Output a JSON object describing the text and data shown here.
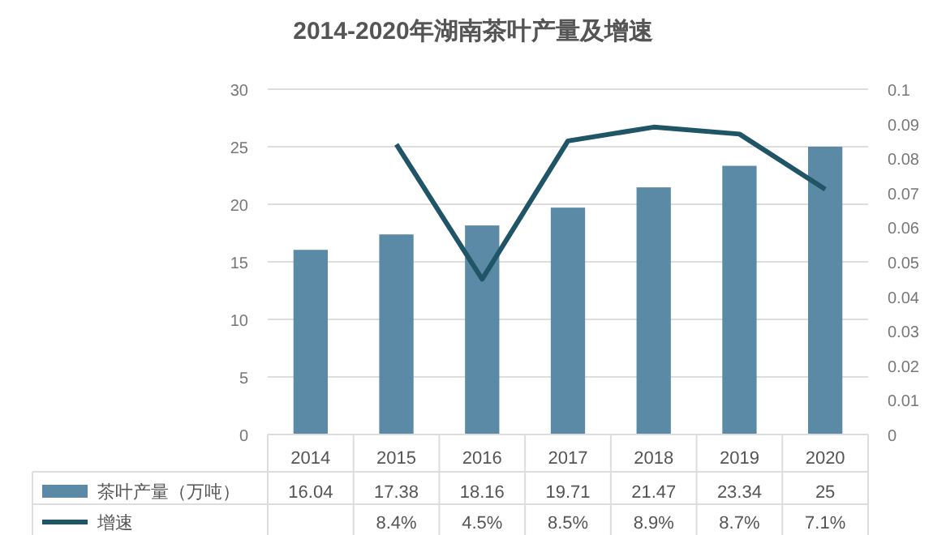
{
  "chart_data": {
    "type": "bar",
    "title": "2014-2020年湖南茶叶产量及增速",
    "categories": [
      "2014",
      "2015",
      "2016",
      "2017",
      "2018",
      "2019",
      "2020"
    ],
    "series": [
      {
        "name": "茶叶产量（万吨）",
        "color": "#5b8aa6",
        "values": [
          16.04,
          17.38,
          18.16,
          19.71,
          21.47,
          23.34,
          25
        ]
      },
      {
        "name": "增速",
        "type": "line",
        "axis": "y2",
        "color": "#1f5566",
        "values": [
          null,
          0.084,
          0.045,
          0.085,
          0.089,
          0.087,
          0.071
        ],
        "value_labels": [
          null,
          "8.4%",
          "4.5%",
          "8.5%",
          "8.9%",
          "8.7%",
          "7.1%"
        ]
      }
    ],
    "data_labels": true,
    "ylim": [
      0,
      30
    ],
    "yticks": [
      0,
      5,
      10,
      15,
      20,
      25,
      30
    ],
    "y2lim": [
      0,
      0.1
    ],
    "y2ticks": [
      0,
      0.01,
      0.02,
      0.03,
      0.04,
      0.05,
      0.06,
      0.07,
      0.08,
      0.09,
      0.1
    ],
    "grid": "y",
    "legend": "bottom",
    "marker": "none",
    "line_style": "solid"
  }
}
